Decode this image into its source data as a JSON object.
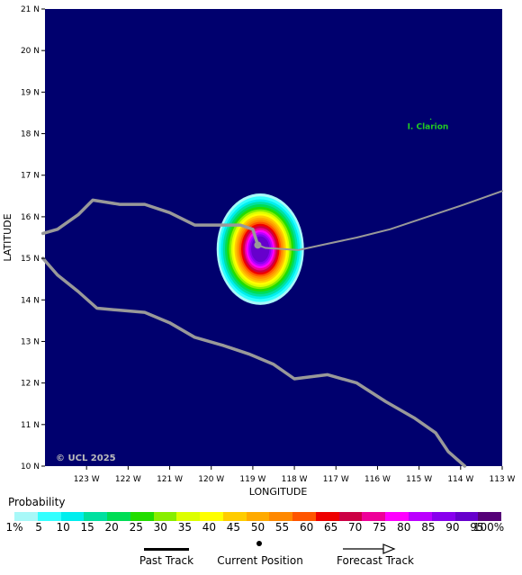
{
  "map": {
    "lon_range": [
      -124,
      -113
    ],
    "lat_range": [
      10,
      21
    ],
    "lon_ticks": [
      {
        "value": -123,
        "label": "123 W"
      },
      {
        "value": -122,
        "label": "122 W"
      },
      {
        "value": -121,
        "label": "121 W"
      },
      {
        "value": -120,
        "label": "120 W"
      },
      {
        "value": -119,
        "label": "119 W"
      },
      {
        "value": -118,
        "label": "118 W"
      },
      {
        "value": -117,
        "label": "117 W"
      },
      {
        "value": -116,
        "label": "116 W"
      },
      {
        "value": -115,
        "label": "115 W"
      },
      {
        "value": -114,
        "label": "114 W"
      },
      {
        "value": -113,
        "label": "113 W"
      }
    ],
    "lat_ticks": [
      {
        "value": 10,
        "label": "10 N"
      },
      {
        "value": 11,
        "label": "11 N"
      },
      {
        "value": 12,
        "label": "12 N"
      },
      {
        "value": 13,
        "label": "13 N"
      },
      {
        "value": 14,
        "label": "14 N"
      },
      {
        "value": 15,
        "label": "15 N"
      },
      {
        "value": 16,
        "label": "16 N"
      },
      {
        "value": 17,
        "label": "17 N"
      },
      {
        "value": 18,
        "label": "18 N"
      },
      {
        "value": 19,
        "label": "19 N"
      },
      {
        "value": 20,
        "label": "20 N"
      },
      {
        "value": 21,
        "label": "21 N"
      }
    ],
    "xlabel": "LONGITUDE",
    "ylabel": "LATITUDE",
    "ocean_color": "#00006e",
    "copyright": "© UCL 2025",
    "places": [
      {
        "name": "I. Clarion",
        "lon": -114.72,
        "lat": 18.35,
        "color": "#22cc22"
      }
    ],
    "current_position": {
      "lon": -118.88,
      "lat": 15.32
    },
    "tracks": [
      {
        "name": "track-a",
        "color": "#999999",
        "width": 3.5,
        "points": [
          [
            -124.05,
            15.6
          ],
          [
            -123.7,
            15.7
          ],
          [
            -123.2,
            16.05
          ],
          [
            -122.85,
            16.4
          ],
          [
            -122.2,
            16.3
          ],
          [
            -121.6,
            16.3
          ],
          [
            -121.0,
            16.1
          ],
          [
            -120.4,
            15.8
          ],
          [
            -119.3,
            15.8
          ],
          [
            -119.0,
            15.7
          ],
          [
            -118.88,
            15.32
          ]
        ]
      },
      {
        "name": "track-b",
        "color": "#999999",
        "width": 2,
        "points": [
          [
            -118.88,
            15.32
          ],
          [
            -118.7,
            15.25
          ],
          [
            -117.9,
            15.2
          ],
          [
            -117.2,
            15.35
          ],
          [
            -116.5,
            15.5
          ],
          [
            -115.7,
            15.7
          ],
          [
            -114.8,
            16.0
          ],
          [
            -113.9,
            16.3
          ],
          [
            -113.0,
            16.62
          ]
        ]
      },
      {
        "name": "track-c",
        "color": "#999999",
        "width": 3.5,
        "points": [
          [
            -124.05,
            15.0
          ],
          [
            -123.7,
            14.6
          ],
          [
            -123.2,
            14.2
          ],
          [
            -122.75,
            13.8
          ],
          [
            -122.2,
            13.75
          ],
          [
            -121.6,
            13.7
          ],
          [
            -121.0,
            13.45
          ],
          [
            -120.4,
            13.1
          ],
          [
            -119.7,
            12.9
          ],
          [
            -119.1,
            12.7
          ],
          [
            -118.5,
            12.45
          ],
          [
            -118.0,
            12.1
          ],
          [
            -117.2,
            12.2
          ],
          [
            -116.5,
            12.0
          ],
          [
            -115.8,
            11.55
          ],
          [
            -115.1,
            11.15
          ],
          [
            -114.6,
            10.8
          ],
          [
            -114.3,
            10.35
          ],
          [
            -113.9,
            10.0
          ]
        ]
      }
    ],
    "probability_field": {
      "center": {
        "lon": -118.82,
        "lat": 15.22
      },
      "rings": [
        {
          "level": 1,
          "color": "#a8f8f8",
          "rx": 1.05,
          "ry": 1.34
        },
        {
          "level": 5,
          "color": "#33ffff",
          "rx": 1.0,
          "ry": 1.27
        },
        {
          "level": 10,
          "color": "#00eeee",
          "rx": 0.95,
          "ry": 1.2
        },
        {
          "level": 15,
          "color": "#00e0a0",
          "rx": 0.9,
          "ry": 1.14
        },
        {
          "level": 20,
          "color": "#00dd55",
          "rx": 0.85,
          "ry": 1.08
        },
        {
          "level": 25,
          "color": "#22dd00",
          "rx": 0.8,
          "ry": 1.02
        },
        {
          "level": 30,
          "color": "#88ee00",
          "rx": 0.75,
          "ry": 0.96
        },
        {
          "level": 35,
          "color": "#ddff00",
          "rx": 0.7,
          "ry": 0.91
        },
        {
          "level": 40,
          "color": "#ffff00",
          "rx": 0.66,
          "ry": 0.86
        },
        {
          "level": 45,
          "color": "#ffcc00",
          "rx": 0.62,
          "ry": 0.81
        },
        {
          "level": 50,
          "color": "#ffaa00",
          "rx": 0.58,
          "ry": 0.76
        },
        {
          "level": 55,
          "color": "#ff8800",
          "rx": 0.54,
          "ry": 0.71
        },
        {
          "level": 60,
          "color": "#ff5500",
          "rx": 0.5,
          "ry": 0.66
        },
        {
          "level": 65,
          "color": "#ee0000",
          "rx": 0.46,
          "ry": 0.61
        },
        {
          "level": 70,
          "color": "#cc0044",
          "rx": 0.42,
          "ry": 0.56
        },
        {
          "level": 75,
          "color": "#ee0099",
          "rx": 0.38,
          "ry": 0.51
        },
        {
          "level": 80,
          "color": "#ff00ff",
          "rx": 0.34,
          "ry": 0.46
        },
        {
          "level": 85,
          "color": "#bb00ff",
          "rx": 0.3,
          "ry": 0.41
        },
        {
          "level": 90,
          "color": "#8800ee",
          "rx": 0.26,
          "ry": 0.36
        },
        {
          "level": 95,
          "color": "#6600cc",
          "rx": 0.22,
          "ry": 0.31
        }
      ]
    }
  },
  "legend": {
    "title": "Probability",
    "colors": [
      "#a8f8f8",
      "#33ffff",
      "#00eeee",
      "#00e0a0",
      "#00dd55",
      "#22dd00",
      "#88ee00",
      "#ddff00",
      "#ffff00",
      "#ffcc00",
      "#ffaa00",
      "#ff8800",
      "#ff5500",
      "#ee0000",
      "#cc0044",
      "#ee0099",
      "#ff00ff",
      "#bb00ff",
      "#8800ee",
      "#6600cc",
      "#550077"
    ],
    "labels": [
      "1%",
      "5",
      "10",
      "15",
      "20",
      "25",
      "30",
      "35",
      "40",
      "45",
      "50",
      "55",
      "60",
      "65",
      "70",
      "75",
      "80",
      "85",
      "90",
      "95",
      "100%"
    ]
  },
  "key": {
    "past_track": "Past Track",
    "current_position": "Current Position",
    "forecast_track": "Forecast Track"
  }
}
